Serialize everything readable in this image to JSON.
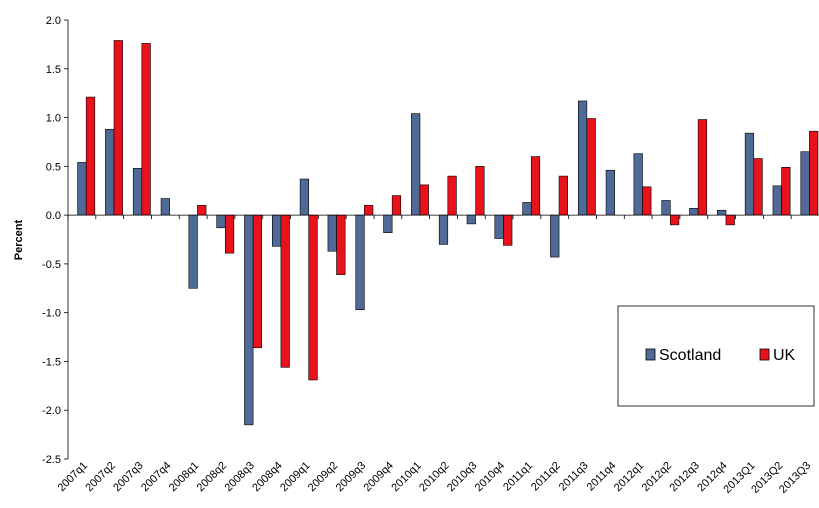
{
  "chart_data": {
    "type": "bar",
    "title": "",
    "xlabel": "",
    "ylabel": "Percent",
    "ylim": [
      -2.5,
      2.0
    ],
    "yticks": [
      "2.0",
      "1.5",
      "1.0",
      "0.5",
      "0.0",
      "-0.5",
      "-1.0",
      "-1.5",
      "-2.0",
      "-2.5"
    ],
    "categories": [
      "2007q1",
      "2007q2",
      "2007q3",
      "2007q4",
      "2008q1",
      "2008q2",
      "2008q3",
      "2008q4",
      "2009q1",
      "2009q2",
      "2009q3",
      "2009q4",
      "2010q1",
      "2010q2",
      "2010q3",
      "2010q4",
      "2011q1",
      "2011q2",
      "2011q3",
      "2011q4",
      "2012q1",
      "2012q2",
      "2012q3",
      "2012q4",
      "2013Q1",
      "2013Q2",
      "2013Q3"
    ],
    "series": [
      {
        "name": "Scotland",
        "color": "#4f6a97",
        "values": [
          0.54,
          0.88,
          0.48,
          0.17,
          -0.75,
          -0.13,
          -2.15,
          -0.32,
          0.37,
          -0.37,
          -0.97,
          -0.18,
          1.04,
          -0.3,
          -0.09,
          -0.24,
          0.13,
          -0.43,
          1.17,
          0.46,
          0.63,
          0.15,
          0.07,
          0.05,
          0.84,
          0.3,
          0.65
        ]
      },
      {
        "name": "UK",
        "color": "#e8121b",
        "values": [
          1.21,
          1.79,
          1.76,
          null,
          0.1,
          -0.39,
          -1.36,
          -1.56,
          -1.69,
          -0.61,
          0.1,
          0.2,
          0.31,
          0.4,
          0.5,
          -0.31,
          0.6,
          0.4,
          0.99,
          null,
          0.29,
          -0.1,
          0.98,
          -0.1,
          0.58,
          0.49,
          0.86
        ]
      }
    ],
    "legend": {
      "position": "bottom-right",
      "entries": [
        "Scotland",
        "UK"
      ]
    },
    "grid": false
  }
}
